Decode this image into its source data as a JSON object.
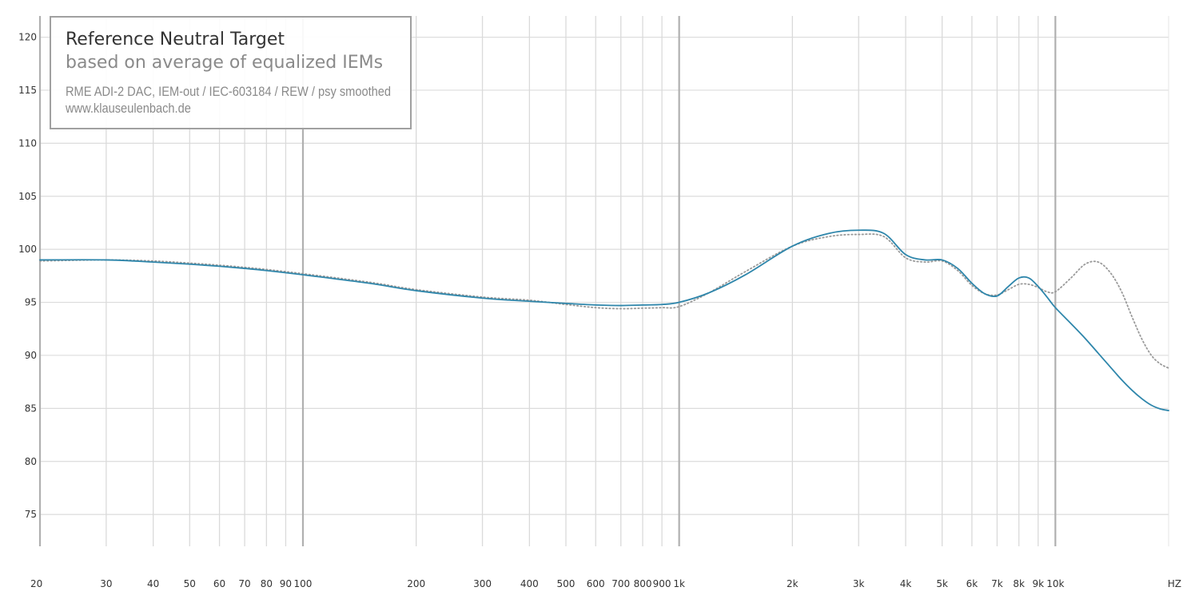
{
  "chart_data": {
    "type": "line",
    "title": "Reference Neutral Target",
    "subtitle": "based on average of equalized IEMs",
    "info_lines": [
      "RME ADI-2 DAC, IEM-out / IEC-603184 / REW / psy smoothed",
      "www.klauseulenbach.de"
    ],
    "xlabel": "HZ",
    "ylabel": "",
    "x_scale": "log",
    "xlim": [
      20,
      20000
    ],
    "ylim": [
      72,
      122
    ],
    "grid": true,
    "y_ticks": [
      75,
      80,
      85,
      90,
      95,
      100,
      105,
      110,
      115,
      120
    ],
    "x_ticks": [
      {
        "value": 20,
        "label": "20"
      },
      {
        "value": 30,
        "label": "30"
      },
      {
        "value": 40,
        "label": "40"
      },
      {
        "value": 50,
        "label": "50"
      },
      {
        "value": 60,
        "label": "60"
      },
      {
        "value": 70,
        "label": "70"
      },
      {
        "value": 80,
        "label": "80"
      },
      {
        "value": 90,
        "label": "90"
      },
      {
        "value": 100,
        "label": "100"
      },
      {
        "value": 200,
        "label": "200"
      },
      {
        "value": 300,
        "label": "300"
      },
      {
        "value": 400,
        "label": "400"
      },
      {
        "value": 500,
        "label": "500"
      },
      {
        "value": 600,
        "label": "600"
      },
      {
        "value": 700,
        "label": "700"
      },
      {
        "value": 800,
        "label": "800"
      },
      {
        "value": 900,
        "label": "900"
      },
      {
        "value": 1000,
        "label": "1k"
      },
      {
        "value": 2000,
        "label": "2k"
      },
      {
        "value": 3000,
        "label": "3k"
      },
      {
        "value": 4000,
        "label": "4k"
      },
      {
        "value": 5000,
        "label": "5k"
      },
      {
        "value": 6000,
        "label": "6k"
      },
      {
        "value": 7000,
        "label": "7k"
      },
      {
        "value": 8000,
        "label": "8k"
      },
      {
        "value": 9000,
        "label": "9k"
      },
      {
        "value": 10000,
        "label": "10k"
      }
    ],
    "series": [
      {
        "style": "solid",
        "color": "#2e86ab",
        "x": [
          20,
          30,
          40,
          50,
          60,
          70,
          80,
          100,
          150,
          200,
          300,
          400,
          500,
          600,
          700,
          800,
          900,
          1000,
          1200,
          1500,
          2000,
          2500,
          3000,
          3500,
          4000,
          4500,
          5000,
          5500,
          6000,
          6500,
          7000,
          7500,
          8000,
          8500,
          9000,
          9500,
          10000,
          11000,
          12000,
          13000,
          14000,
          15000,
          16000,
          17000,
          18000,
          19000,
          20000
        ],
        "y": [
          99.0,
          99.0,
          98.8,
          98.6,
          98.4,
          98.2,
          98.0,
          97.6,
          96.8,
          96.1,
          95.4,
          95.1,
          94.9,
          94.75,
          94.7,
          94.75,
          94.8,
          95.0,
          95.9,
          97.6,
          100.3,
          101.5,
          101.8,
          101.5,
          99.5,
          99.0,
          99.0,
          98.2,
          96.8,
          95.8,
          95.6,
          96.5,
          97.3,
          97.3,
          96.5,
          95.5,
          94.5,
          93.0,
          91.6,
          90.2,
          88.9,
          87.7,
          86.7,
          85.9,
          85.3,
          84.95,
          84.8
        ]
      },
      {
        "style": "dotted",
        "color": "#9a9a9a",
        "x": [
          20,
          30,
          40,
          50,
          60,
          70,
          80,
          100,
          150,
          200,
          300,
          400,
          500,
          600,
          700,
          800,
          900,
          1000,
          1200,
          1500,
          2000,
          2500,
          3000,
          3500,
          4000,
          4500,
          5000,
          5500,
          6000,
          6500,
          7000,
          7500,
          8000,
          8500,
          9000,
          9500,
          10000,
          11000,
          12000,
          13000,
          14000,
          15000,
          16000,
          17000,
          18000,
          19000,
          20000
        ],
        "y": [
          98.9,
          99.0,
          98.9,
          98.7,
          98.5,
          98.3,
          98.1,
          97.7,
          96.9,
          96.2,
          95.5,
          95.2,
          94.8,
          94.5,
          94.4,
          94.45,
          94.5,
          94.6,
          95.9,
          97.9,
          100.3,
          101.2,
          101.4,
          101.2,
          99.2,
          98.8,
          98.9,
          98.0,
          96.6,
          95.8,
          95.7,
          96.2,
          96.7,
          96.7,
          96.4,
          96.0,
          96.0,
          97.3,
          98.6,
          98.8,
          97.8,
          96.0,
          93.6,
          91.5,
          90.0,
          89.2,
          88.8
        ]
      }
    ]
  }
}
